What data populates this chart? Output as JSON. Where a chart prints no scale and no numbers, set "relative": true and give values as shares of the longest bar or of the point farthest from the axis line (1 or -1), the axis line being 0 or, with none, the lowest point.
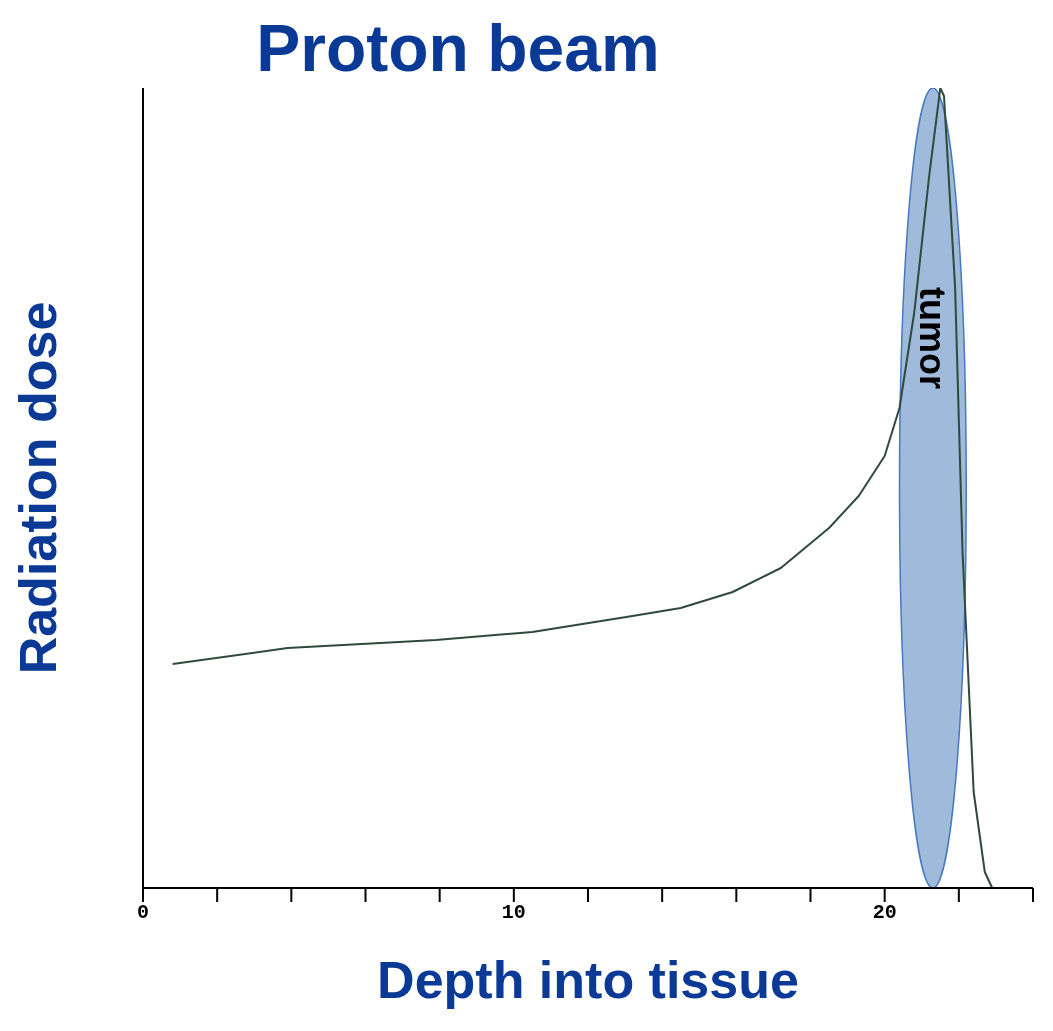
{
  "chart_data": {
    "type": "line",
    "title": "Proton beam",
    "xlabel": "Depth into tissue",
    "ylabel": "Radiation dose",
    "relative": true,
    "x": [
      0.8,
      3.9,
      7.9,
      10.5,
      13.2,
      14.5,
      15.9,
      17.2,
      18.5,
      19.3,
      20,
      20.4,
      20.8,
      21.2,
      21.5,
      21.6,
      21.9,
      22.1,
      22.4,
      22.7,
      22.9
    ],
    "series": [
      {
        "color": "#2f4a3c",
        "values": [
          0.28,
          0.3,
          0.31,
          0.32,
          0.34,
          0.35,
          0.37,
          0.4,
          0.45,
          0.49,
          0.54,
          0.6,
          0.72,
          0.89,
          1,
          0.99,
          0.75,
          0.42,
          0.12,
          0.02,
          0
        ]
      }
    ],
    "xlim": [
      0,
      24
    ],
    "xticks": [
      0,
      {
        "value": 2,
        "label": null
      },
      {
        "value": 4,
        "label": null
      },
      {
        "value": 6,
        "label": null
      },
      {
        "value": 8,
        "label": null
      },
      10,
      {
        "value": 12,
        "label": null
      },
      {
        "value": 14,
        "label": null
      },
      {
        "value": 16,
        "label": null
      },
      {
        "value": 18,
        "label": null
      },
      20,
      {
        "value": 22,
        "label": null
      },
      {
        "value": 24,
        "label": null
      }
    ],
    "bands": [
      {
        "axis": "x",
        "from": 20.4,
        "to": 22.2,
        "label": "tumor",
        "color": "#95b3d7"
      }
    ],
    "marker": "none",
    "line_style": "solid",
    "grid": false,
    "legend": false
  }
}
